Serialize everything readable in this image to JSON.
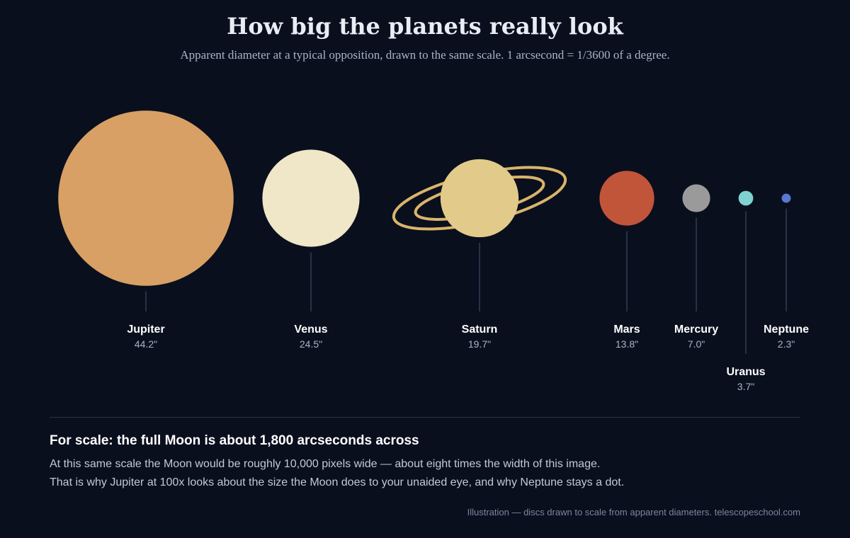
{
  "chart_data": {
    "type": "scatter",
    "title": "How big the planets really look",
    "subtitle": "Apparent diameter at a typical opposition, drawn to the same scale. 1 arcsecond = 1/3600 of a degree.",
    "unit": "arcseconds",
    "categories": [
      "Jupiter",
      "Venus",
      "Saturn",
      "Mars",
      "Mercury",
      "Uranus",
      "Neptune"
    ],
    "values": [
      44.2,
      24.5,
      19.7,
      13.8,
      7.0,
      3.7,
      2.3
    ],
    "value_labels": [
      "44.2\"",
      "24.5\"",
      "19.7\"",
      "13.8\"",
      "7.0\"",
      "3.7\"",
      "2.3\""
    ],
    "colors": [
      "#d8a064",
      "#f0e6c8",
      "#e2ca8a",
      "#c1553a",
      "#9a9a9a",
      "#7ed3d1",
      "#5b78d0"
    ],
    "ring_color": "#d9b46a",
    "rings": [
      "Saturn"
    ]
  },
  "scale_note": {
    "heading": "For scale: the full Moon is about 1,800 arcseconds across",
    "line1": "At this same scale the Moon would be roughly 10,000 pixels wide — about eight times the width of this image.",
    "line2": "That is why Jupiter at 100x looks about the size the Moon does to your unaided eye, and why Neptune stays a dot."
  },
  "footer": "Illustration — discs drawn to scale from apparent diameters. telescopeschool.com"
}
